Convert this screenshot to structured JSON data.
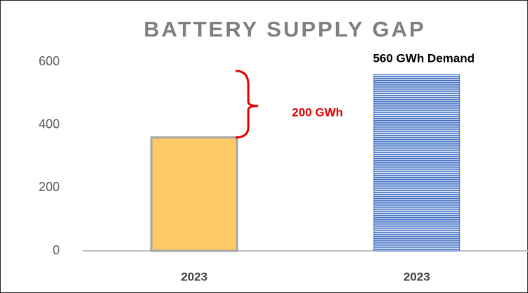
{
  "chart_data": {
    "type": "bar",
    "title": "BATTERY SUPPLY GAP",
    "categories": [
      "2023",
      "2023"
    ],
    "values": [
      360,
      560
    ],
    "colors": [
      "#ffc966",
      "#4472c4"
    ],
    "ylim": [
      0,
      600
    ],
    "yticks": [
      0,
      200,
      400,
      600
    ],
    "grid": false,
    "annotations": [
      "560 GWh Demand",
      "200 GWh"
    ]
  }
}
